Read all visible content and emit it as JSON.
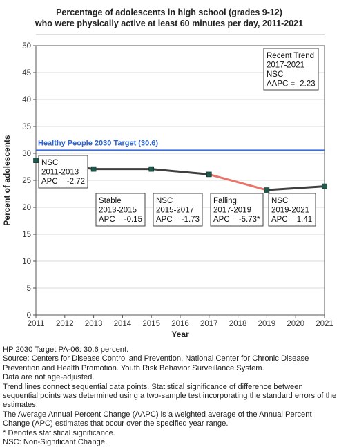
{
  "chart_data": {
    "type": "line",
    "title_lines": [
      "Percentage of adolescents in high school (grades 9-12)",
      "who were physically active at least 60 minutes per day, 2011-2021"
    ],
    "xlabel": "Year",
    "ylabel": "Percent of adolescents",
    "xlim": [
      2011,
      2021
    ],
    "ylim": [
      0,
      50
    ],
    "x_ticks": [
      "2011",
      "2012",
      "2013",
      "2014",
      "2015",
      "2016",
      "2017",
      "2018",
      "2019",
      "2020",
      "2021"
    ],
    "y_ticks": [
      "0",
      "5",
      "10",
      "15",
      "20",
      "25",
      "30",
      "35",
      "40",
      "45",
      "50"
    ],
    "grid": "horizontal",
    "x": [
      2011,
      2013,
      2015,
      2017,
      2019,
      2021
    ],
    "values": [
      28.7,
      27.1,
      27.1,
      26.1,
      23.2,
      23.9
    ],
    "segment_colors": [
      "#3f3f3f",
      "#3f3f3f",
      "#3f3f3f",
      "#e8746a",
      "#3f3f3f"
    ],
    "line_color": "#3f3f3f",
    "falling_color": "#e8746a",
    "marker_color": "#1d5a4c",
    "target": {
      "label": "Healthy People 2030 Target (30.6)",
      "value": 30.6,
      "color": "#3a6fdc"
    },
    "annotations": [
      {
        "lines": [
          "NSC",
          "2011-2013",
          "APC = -2.72"
        ]
      },
      {
        "lines": [
          "Stable",
          "2013-2015",
          "APC = -0.15"
        ]
      },
      {
        "lines": [
          "NSC",
          "2015-2017",
          "APC = -1.73"
        ]
      },
      {
        "lines": [
          "Falling",
          "2017-2019",
          "APC = -5.73*"
        ]
      },
      {
        "lines": [
          "NSC",
          "2019-2021",
          "APC =  1.41"
        ]
      },
      {
        "lines": [
          "Recent Trend",
          "2017-2021",
          "NSC",
          "AAPC = -2.23"
        ]
      }
    ]
  },
  "notes": [
    "HP 2030 Target PA-06: 30.6 percent.",
    "Source: Centers for Disease Control and Prevention, National Center for Chronic Disease Prevention and Health Promotion. Youth Risk Behavior Surveillance System.",
    "Data are not age-adjusted.",
    "Trend lines connect sequential data points. Statistical significance of difference between sequential points was determined using a two-sample test incorporating the standard errors of the estimates.",
    "The Average Annual Percent Change (AAPC) is a weighted average of the Annual Percent Change (APC) estimates that occur over the specified year range.",
    "* Denotes statistical significance.",
    "NSC: Non-Significant Change."
  ]
}
